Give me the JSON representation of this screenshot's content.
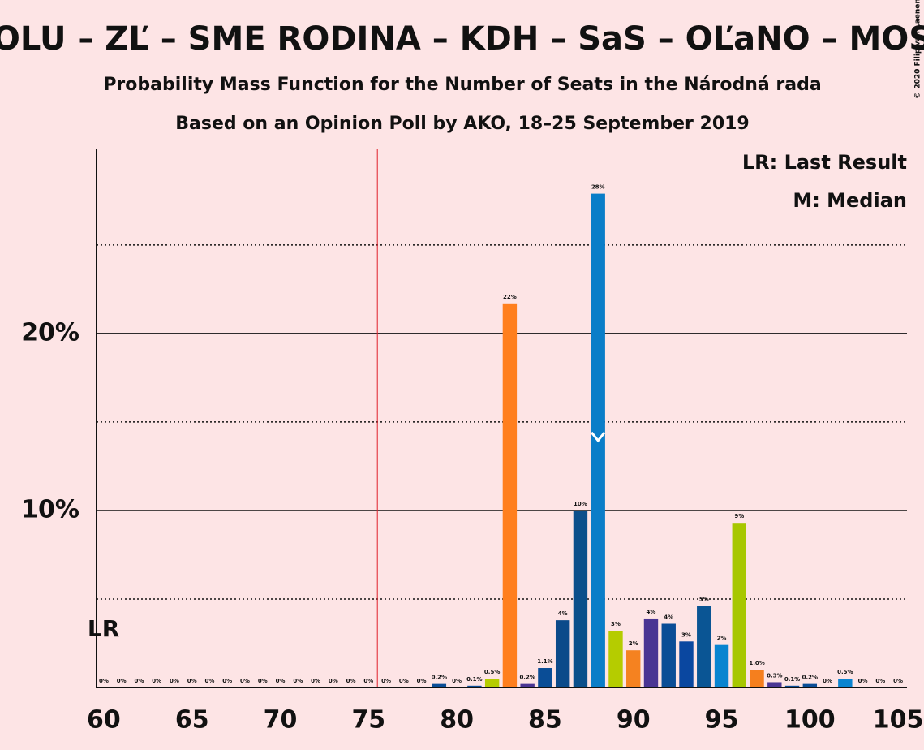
{
  "chart_data": {
    "type": "bar",
    "title": "OLU – ZĽ – SME RODINA – KDH – SaS – OĽaNO – MOS",
    "subtitle": "Probability Mass Function for the Number of Seats in the Národná rada",
    "subtitle2": "Based on an Opinion Poll by AKO, 18–25 September 2019",
    "copyright": "© 2020 Filip van Laenen",
    "legend": [
      "LR: Last Result",
      "M: Median"
    ],
    "last_result": 60,
    "last_result_label": "LR",
    "median": 88,
    "majority_line": 75.5,
    "categories": [
      60,
      61,
      62,
      63,
      64,
      65,
      66,
      67,
      68,
      69,
      70,
      71,
      72,
      73,
      74,
      75,
      76,
      77,
      78,
      79,
      80,
      81,
      82,
      83,
      84,
      85,
      86,
      87,
      88,
      89,
      90,
      91,
      92,
      93,
      94,
      95,
      96,
      97,
      98,
      99,
      100,
      101,
      102,
      103,
      104,
      105
    ],
    "values": [
      0,
      0,
      0,
      0,
      0,
      0,
      0,
      0,
      0,
      0,
      0,
      0,
      0,
      0,
      0,
      0,
      0,
      0,
      0,
      0.2,
      0,
      0.1,
      0.5,
      21.7,
      0.2,
      1.1,
      3.8,
      10.0,
      27.9,
      3.2,
      2.1,
      3.9,
      3.6,
      2.6,
      4.6,
      2.4,
      9.3,
      1.0,
      0.3,
      0.1,
      0.2,
      0,
      0.5,
      0,
      0,
      0
    ],
    "value_labels": [
      "0%",
      "0%",
      "0%",
      "0%",
      "0%",
      "0%",
      "0%",
      "0%",
      "0%",
      "0%",
      "0%",
      "0%",
      "0%",
      "0%",
      "0%",
      "0%",
      "0%",
      "0%",
      "0%",
      "0.2%",
      "0%",
      "0.1%",
      "0.5%",
      "22%",
      "0.2%",
      "1.1%",
      "4%",
      "10%",
      "28%",
      "3%",
      "2%",
      "4%",
      "4%",
      "3%",
      "5%",
      "2%",
      "9%",
      "1.0%",
      "0.3%",
      "0.1%",
      "0.2%",
      "0%",
      "0.5%",
      "0%",
      "0%",
      "0%"
    ],
    "colors": [
      "#0a4d96",
      "#0a4d96",
      "#0a4d96",
      "#0a4d96",
      "#0a4d96",
      "#0a4d96",
      "#0a4d96",
      "#0a4d96",
      "#0a4d96",
      "#0a4d96",
      "#0a4d96",
      "#0a4d96",
      "#0a4d96",
      "#0a4d96",
      "#0a4d96",
      "#0a4d96",
      "#0a4d96",
      "#0a4d96",
      "#0a4d96",
      "#0a4d96",
      "#0a4d96",
      "#0a4d96",
      "#b5cc00",
      "#ff7f1e",
      "#4a3593",
      "#0a4d96",
      "#0b4a8a",
      "#0b4f8b",
      "#0a7dc8",
      "#b5cc00",
      "#f58220",
      "#4a3593",
      "#0a4d96",
      "#0a47a0",
      "#0a5594",
      "#0a84d0",
      "#a7c700",
      "#f57f1e",
      "#4a3593",
      "#0a4d96",
      "#0a4d96",
      "#0a4d96",
      "#0a84d0",
      "#0a4d96",
      "#0a4d96",
      "#0a4d96"
    ],
    "xlim": [
      59.59,
      105.5
    ],
    "xticks": [
      60,
      65,
      70,
      75,
      80,
      85,
      90,
      95,
      100,
      105
    ],
    "ylim": [
      0,
      30.45
    ],
    "yticks": [
      {
        "value": 10,
        "label": "10%"
      },
      {
        "value": 20,
        "label": "20%"
      }
    ],
    "minor_grid": [
      5,
      15,
      25
    ],
    "grid": true
  }
}
